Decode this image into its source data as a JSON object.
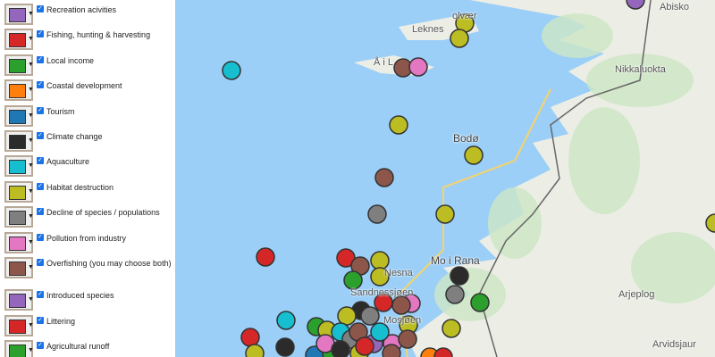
{
  "legend": [
    {
      "label": "Recreation acivities",
      "color": "#9467bd",
      "checked": true
    },
    {
      "label": "Fishing, hunting & harvesting",
      "color": "#d62728",
      "checked": true
    },
    {
      "label": "Local income",
      "color": "#2ca02c",
      "checked": true
    },
    {
      "label": "Coastal development",
      "color": "#ff7f0e",
      "checked": true
    },
    {
      "label": "Tourism",
      "color": "#1f77b4",
      "checked": true
    },
    {
      "label": "Climate change",
      "color": "#2b2b2b",
      "checked": true
    },
    {
      "label": "Aquaculture",
      "color": "#17becf",
      "checked": true
    },
    {
      "label": "Habitat destruction",
      "color": "#bcbd22",
      "checked": true
    },
    {
      "label": "Decline of species / populations",
      "color": "#7f7f7f",
      "checked": true
    },
    {
      "label": "Pollution from industry",
      "color": "#e377c2",
      "checked": true
    },
    {
      "label": "Overfishing (you may choose both)",
      "color": "#8c564b",
      "checked": true
    },
    {
      "label": "Introduced species",
      "color": "#9467bd",
      "checked": true
    },
    {
      "label": "Littering",
      "color": "#d62728",
      "checked": true
    },
    {
      "label": "Agricultural runoff",
      "color": "#2ca02c",
      "checked": true
    }
  ],
  "map": {
    "places": [
      "olvær",
      "Leknes",
      "Å i L",
      "Bodø",
      "Mo i Rana",
      "Nesna",
      "Sandnessjøen",
      "Mosjøen",
      "Abisko",
      "Nikkaluokta",
      "Arjeplog",
      "Arvidsjaur"
    ],
    "colors": {
      "water": "#9ccff7",
      "land": "#eceee6",
      "forest": "#cde6c4",
      "border": "#666666",
      "road": "#f5d36b"
    }
  }
}
